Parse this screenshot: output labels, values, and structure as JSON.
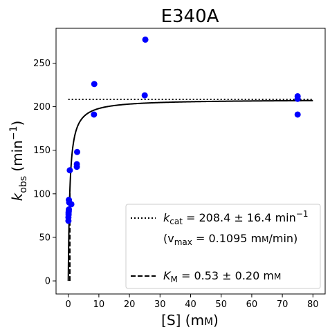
{
  "chart_data": {
    "type": "scatter",
    "title": "E340A",
    "xlabel": {
      "base": "[S] (m",
      "smallcaps": "M",
      "close": ")"
    },
    "ylabel": {
      "k": "k",
      "sub": "obs",
      "mid": " (min",
      "sup": "−1",
      "close": ")"
    },
    "xlim": [
      -4,
      84
    ],
    "ylim": [
      -15,
      290
    ],
    "xticks": [
      0,
      10,
      20,
      30,
      40,
      50,
      60,
      70,
      80
    ],
    "xtick_labels": [
      "0",
      "10",
      "20",
      "30",
      "40",
      "50",
      "60",
      "70",
      "80"
    ],
    "yticks": [
      0,
      50,
      100,
      150,
      200,
      250
    ],
    "ytick_labels": [
      "0",
      "50",
      "100",
      "150",
      "200",
      "250"
    ],
    "series": [
      {
        "kind": "points",
        "color": "#0000ff",
        "x": [
          0.05,
          0.05,
          0.1,
          0.1,
          0.15,
          0.2,
          0.2,
          0.3,
          0.5,
          1.0,
          2.8,
          2.8,
          2.9,
          8.4,
          8.5,
          25.0,
          25.2,
          75.0,
          75.0,
          75.0
        ],
        "y": [
          69,
          73,
          76,
          78,
          80,
          82,
          93,
          90,
          127,
          88,
          131,
          134,
          148,
          191,
          226,
          213,
          277,
          191,
          209,
          212
        ]
      },
      {
        "kind": "fit-curve",
        "style": "solid",
        "color": "#000000",
        "vmax": 208.4,
        "km": 0.53,
        "x_range": [
          0,
          80
        ]
      },
      {
        "kind": "kcat-line",
        "style": "dotted",
        "color": "#000000",
        "y": 208.4,
        "x_range": [
          0,
          80
        ]
      },
      {
        "kind": "km-marker",
        "style": "dashed",
        "color": "#000000",
        "x": 0.53,
        "y_range": [
          0,
          104.2
        ]
      }
    ],
    "legend": {
      "placement": "lower-right",
      "entries": [
        {
          "style": "dotted",
          "prefix": "k",
          "sub": "cat",
          "text": " = 208.4 ± 16.4 min",
          "sup": "−1"
        },
        {
          "style": "none",
          "text_open": "(v",
          "sub": "max",
          "text": " = 0.1095 m",
          "smallcaps": "M",
          "text_close": "/min)"
        },
        {
          "style": "dashed",
          "prefix": "K",
          "sub": "M",
          "text": " = 0.53 ± 0.20 m",
          "smallcaps": "M"
        }
      ]
    }
  }
}
